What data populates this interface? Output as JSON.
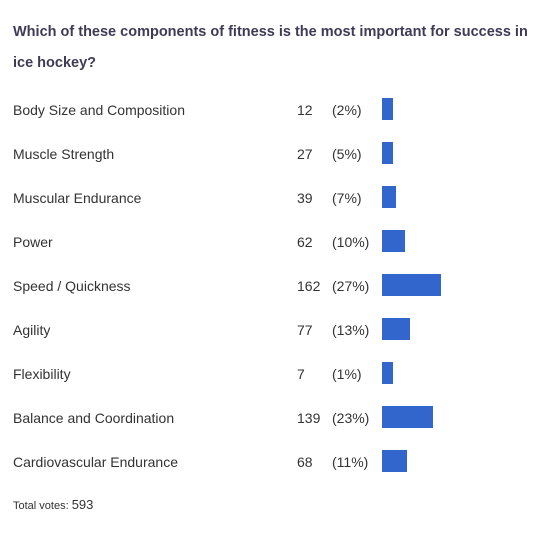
{
  "poll": {
    "question": "Which of these components of fitness is the most important for success in ice hockey?",
    "total_label": "Total votes:",
    "total_votes": "593"
  },
  "colors": {
    "bar": "#3366cc",
    "question_text": "#3f3a56"
  },
  "chart_data": {
    "type": "bar",
    "orientation": "horizontal",
    "title": "Which of these components of fitness is the most important for success in ice hockey?",
    "categories": [
      "Body Size and Composition",
      "Muscle Strength",
      "Muscular Endurance",
      "Power",
      "Speed / Quickness",
      "Agility",
      "Flexibility",
      "Balance and Coordination",
      "Cardiovascular Endurance"
    ],
    "values": [
      12,
      27,
      39,
      62,
      162,
      77,
      7,
      139,
      68
    ],
    "percent_labels": [
      "(2%)",
      "(5%)",
      "(7%)",
      "(10%)",
      "(27%)",
      "(13%)",
      "(1%)",
      "(23%)",
      "(11%)"
    ],
    "percents": [
      2,
      5,
      7,
      10,
      27,
      13,
      1,
      23,
      11
    ],
    "grid": false,
    "legend": "none"
  }
}
